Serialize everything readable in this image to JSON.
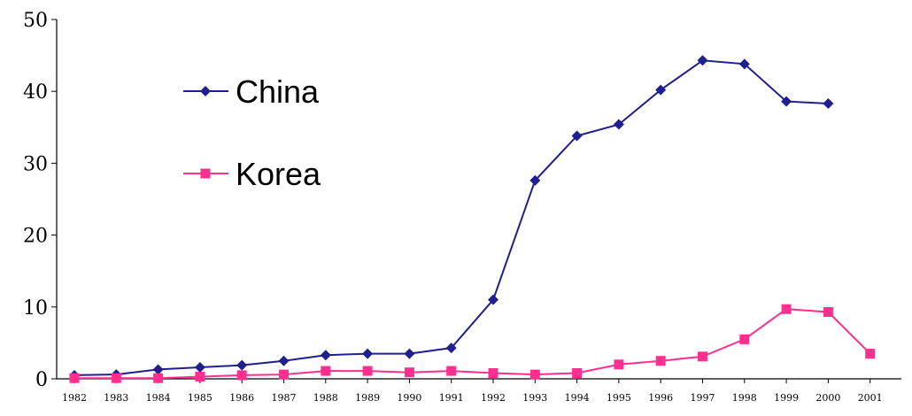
{
  "chart_data": {
    "type": "line",
    "title": "",
    "xlabel": "",
    "ylabel": "",
    "x": [
      "1982",
      "1983",
      "1984",
      "1985",
      "1986",
      "1987",
      "1988",
      "1989",
      "1990",
      "1991",
      "1992",
      "1993",
      "1994",
      "1995",
      "1996",
      "1997",
      "1998",
      "1999",
      "2000",
      "2001"
    ],
    "y_ticks": [
      "0",
      "10",
      "20",
      "30",
      "40",
      "50"
    ],
    "ylim": [
      0,
      50
    ],
    "grid": false,
    "legend_position": "top-left",
    "series": [
      {
        "name": "China",
        "color": "#1f1f8f",
        "marker": "diamond",
        "values": [
          0.5,
          0.6,
          1.3,
          1.6,
          1.9,
          2.5,
          3.3,
          3.5,
          3.5,
          4.3,
          11.0,
          27.6,
          33.8,
          35.4,
          40.2,
          44.3,
          43.8,
          38.6,
          38.3,
          null
        ]
      },
      {
        "name": "Korea",
        "color": "#ff2f8f",
        "marker": "square",
        "values": [
          0.1,
          0.1,
          0.1,
          0.3,
          0.5,
          0.6,
          1.1,
          1.1,
          0.9,
          1.1,
          0.8,
          0.6,
          0.8,
          2.0,
          2.5,
          3.1,
          5.5,
          9.7,
          9.3,
          3.5
        ]
      }
    ]
  }
}
